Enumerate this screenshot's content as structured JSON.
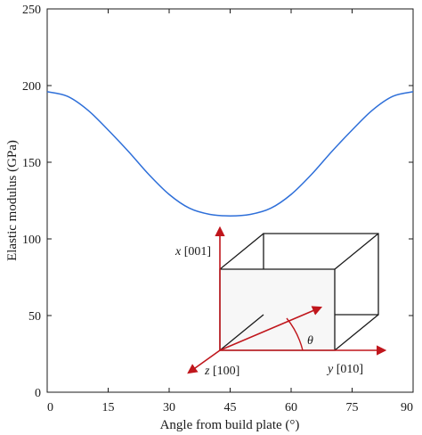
{
  "chart_data": {
    "type": "line",
    "title": "",
    "xlabel": "Angle from build plate (°)",
    "ylabel": "Elastic modulus (GPa)",
    "xlim": [
      0,
      90
    ],
    "ylim": [
      0,
      250
    ],
    "xticks": [
      "0",
      "15",
      "30",
      "45",
      "60",
      "75",
      "90"
    ],
    "yticks": [
      "0",
      "50",
      "100",
      "150",
      "200",
      "250"
    ],
    "grid": false,
    "legend": "none",
    "series": [
      {
        "color": "#2e6fd9",
        "x": [
          0,
          5,
          10,
          15,
          20,
          25,
          30,
          35,
          40,
          45,
          50,
          55,
          60,
          65,
          70,
          75,
          80,
          85,
          90
        ],
        "y": [
          196,
          193,
          184,
          171,
          157,
          142,
          129,
          120,
          116,
          115,
          116,
          120,
          129,
          142,
          157,
          171,
          184,
          193,
          196
        ]
      }
    ]
  },
  "inset": {
    "x_axis_label_var": "x",
    "x_axis_label_dir": "[001]",
    "y_axis_label_var": "y",
    "y_axis_label_dir": "[010]",
    "z_axis_label_var": "z",
    "z_axis_label_dir": "[100]",
    "angle_label": "θ",
    "arrow_color": "#c0161c",
    "box_fill": "#f7f7f7"
  }
}
